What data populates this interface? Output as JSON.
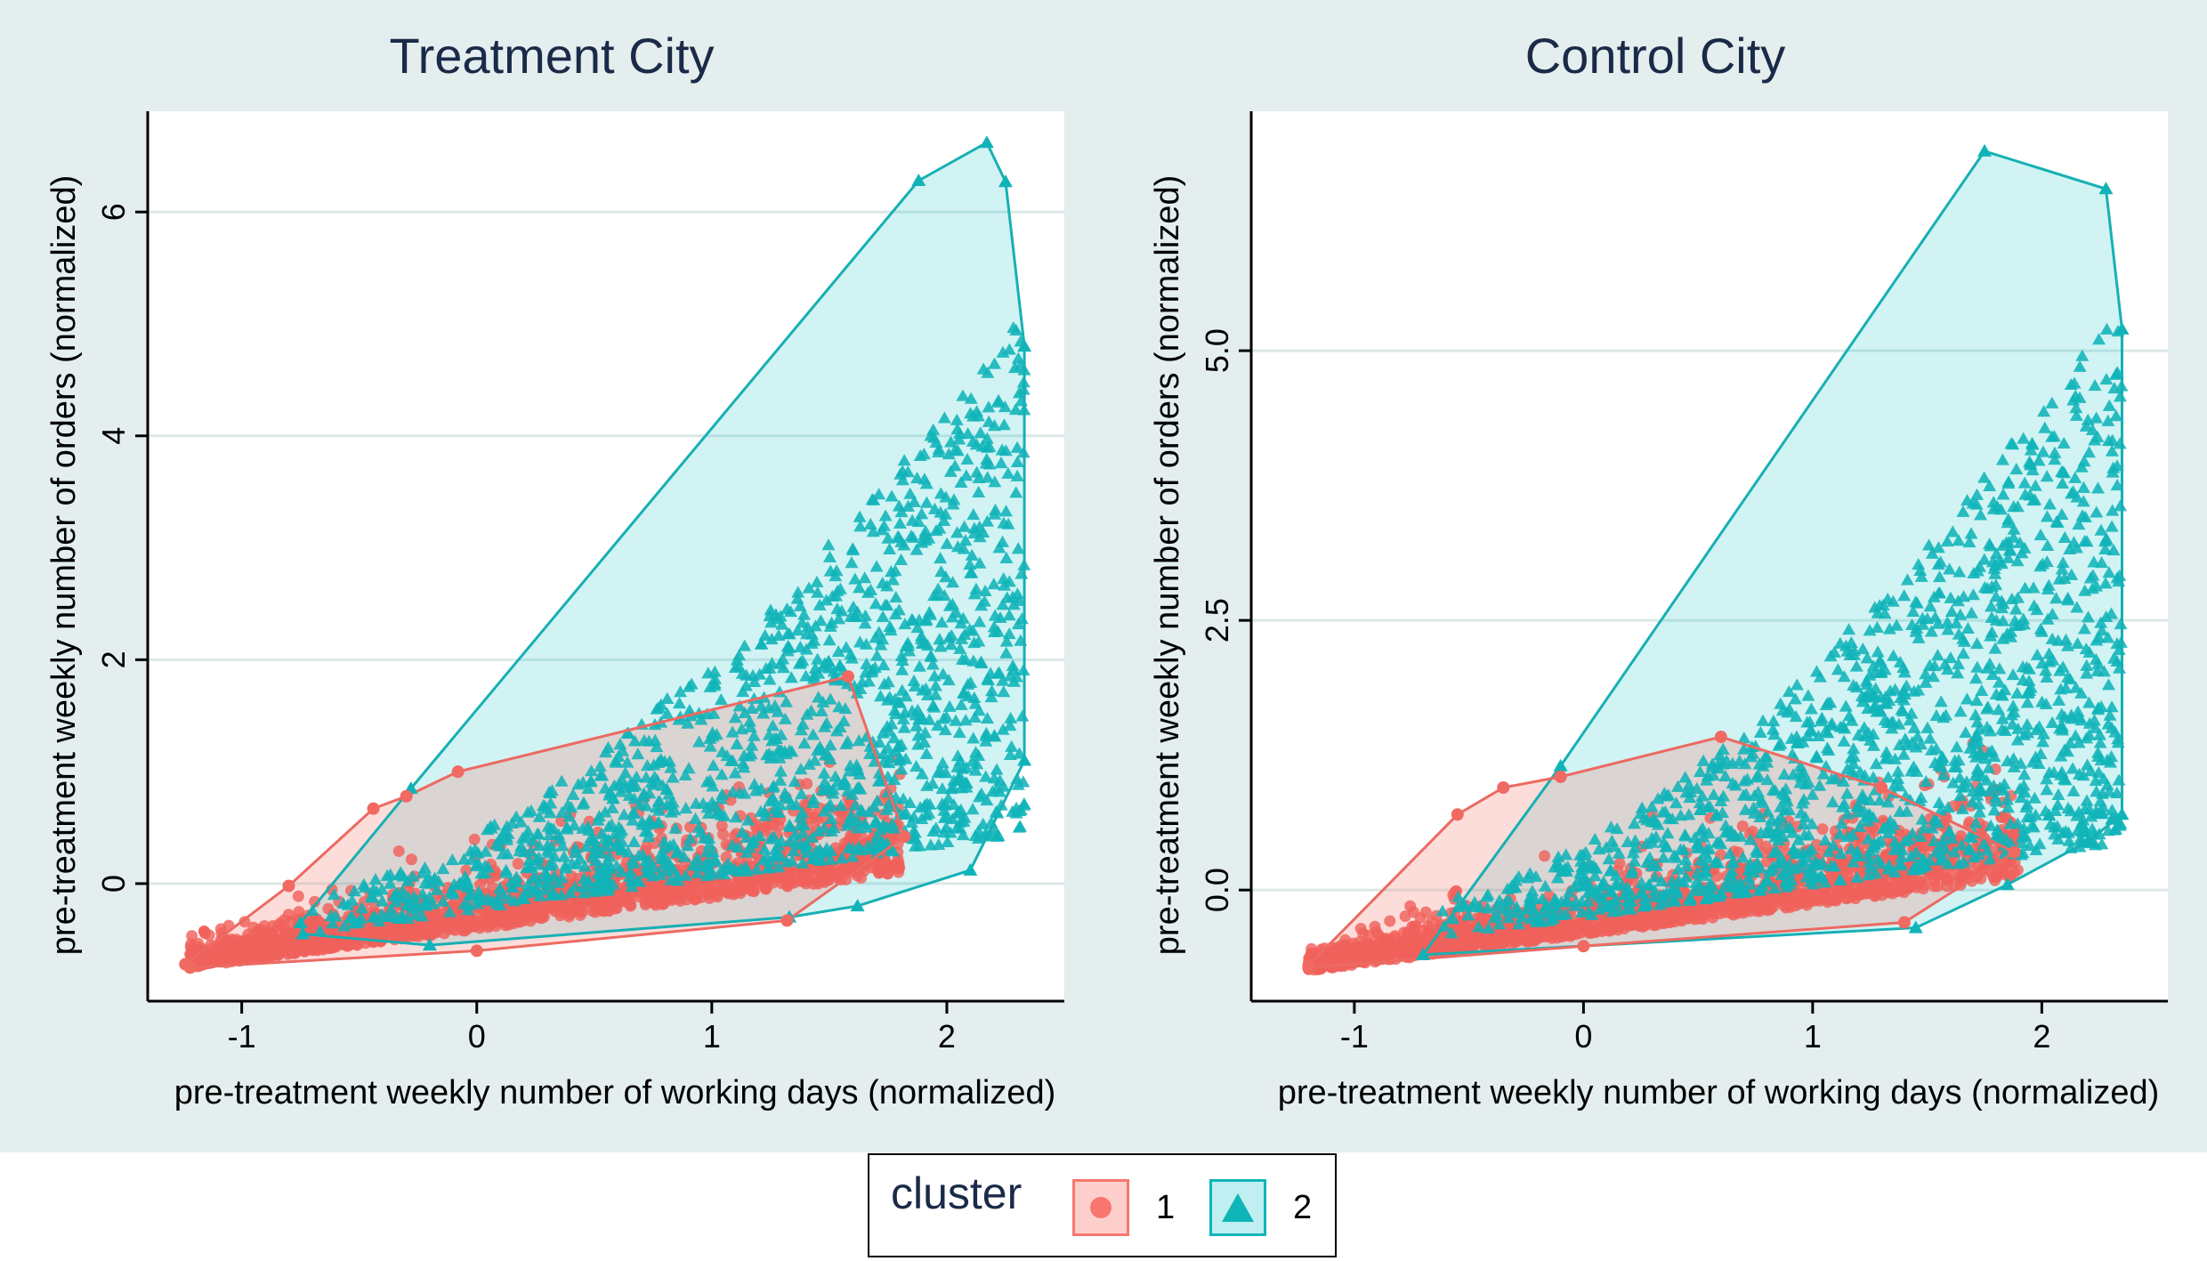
{
  "legend": {
    "title": "cluster",
    "items": [
      {
        "label": "1",
        "color": "#f8766d",
        "shape": "circle"
      },
      {
        "label": "2",
        "color": "#00bfc4",
        "shape": "triangle"
      }
    ]
  },
  "chart_data": [
    {
      "type": "scatter",
      "title": "Treatment City",
      "xlabel": "pre-treatment weekly number of working days (normalized)",
      "ylabel": "pre-treatment weekly number of orders (normalized)",
      "xlim": [
        -1.4,
        2.5
      ],
      "ylim": [
        -1.05,
        6.9
      ],
      "xticks": [
        -1,
        0,
        1,
        2
      ],
      "xtick_labels": [
        "-1",
        "0",
        "1",
        "2"
      ],
      "yticks": [
        0,
        2,
        4,
        6
      ],
      "ytick_labels": [
        "0",
        "2",
        "4",
        "6"
      ],
      "grid": "horizontal",
      "series": [
        {
          "name": "1",
          "color": "#f8766d",
          "marker": "circle",
          "x_range": [
            -1.22,
            1.8
          ],
          "hull": [
            [
              -1.24,
              -0.72
            ],
            [
              -0.8,
              -0.02
            ],
            [
              -0.44,
              0.67
            ],
            [
              -0.3,
              0.78
            ],
            [
              -0.08,
              1.0
            ],
            [
              1.58,
              1.85
            ],
            [
              1.82,
              0.42
            ],
            [
              1.32,
              -0.33
            ],
            [
              0.0,
              -0.6
            ],
            [
              -1.22,
              -0.75
            ]
          ]
        },
        {
          "name": "2",
          "color": "#00bfc4",
          "marker": "triangle",
          "x_range": [
            -0.75,
            2.33
          ],
          "hull": [
            [
              -0.75,
              -0.35
            ],
            [
              -0.28,
              0.85
            ],
            [
              1.88,
              6.28
            ],
            [
              2.17,
              6.62
            ],
            [
              2.25,
              6.27
            ],
            [
              2.33,
              4.8
            ],
            [
              2.33,
              1.1
            ],
            [
              2.1,
              0.12
            ],
            [
              1.62,
              -0.2
            ],
            [
              1.33,
              -0.3
            ],
            [
              -0.2,
              -0.55
            ],
            [
              -0.74,
              -0.45
            ]
          ]
        }
      ]
    },
    {
      "type": "scatter",
      "title": "Control City",
      "xlabel": "pre-treatment weekly number of working days (normalized)",
      "ylabel": "pre-treatment weekly number of orders (normalized)",
      "xlim": [
        -1.45,
        2.55
      ],
      "ylim": [
        -1.03,
        7.22
      ],
      "xticks": [
        -1,
        0,
        1,
        2
      ],
      "xtick_labels": [
        "-1",
        "0",
        "1",
        "2"
      ],
      "yticks": [
        0,
        2.5,
        5
      ],
      "ytick_labels": [
        "0.0",
        "2.5",
        "5.0"
      ],
      "grid": "horizontal",
      "series": [
        {
          "name": "1",
          "color": "#f8766d",
          "marker": "circle",
          "x_range": [
            -1.2,
            1.9
          ],
          "hull": [
            [
              -1.2,
              -0.7
            ],
            [
              -0.55,
              0.7
            ],
            [
              -0.35,
              0.95
            ],
            [
              -0.1,
              1.05
            ],
            [
              0.6,
              1.42
            ],
            [
              1.3,
              0.95
            ],
            [
              1.88,
              0.35
            ],
            [
              1.4,
              -0.3
            ],
            [
              0.0,
              -0.52
            ],
            [
              -1.2,
              -0.72
            ]
          ]
        },
        {
          "name": "2",
          "color": "#00bfc4",
          "marker": "triangle",
          "x_range": [
            -0.7,
            2.35
          ],
          "hull": [
            [
              -0.7,
              -0.6
            ],
            [
              -0.1,
              1.15
            ],
            [
              1.75,
              6.85
            ],
            [
              2.28,
              6.5
            ],
            [
              2.35,
              5.2
            ],
            [
              2.35,
              0.7
            ],
            [
              2.2,
              0.45
            ],
            [
              1.85,
              0.05
            ],
            [
              1.45,
              -0.35
            ],
            [
              -0.7,
              -0.6
            ]
          ]
        }
      ]
    }
  ]
}
